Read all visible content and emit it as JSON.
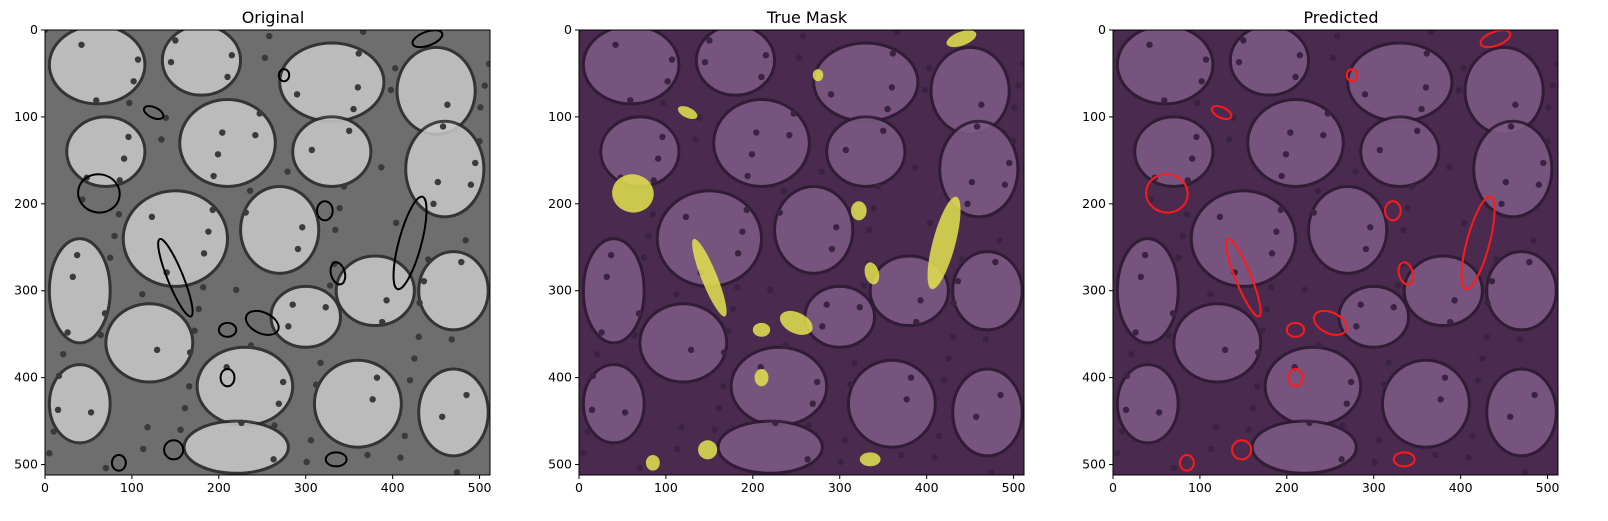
{
  "panels": [
    {
      "title": "Original",
      "style": "grayscale",
      "outline": "#000000"
    },
    {
      "title": "True Mask",
      "style": "mask",
      "fill": "#e3e34f"
    },
    {
      "title": "Predicted",
      "style": "overlay",
      "outline": "#ff1a1a"
    }
  ],
  "axis": {
    "x_ticks": [
      "0",
      "100",
      "200",
      "300",
      "400",
      "500"
    ],
    "y_ticks": [
      "0",
      "100",
      "200",
      "300",
      "400",
      "500"
    ],
    "range": [
      0,
      512
    ]
  },
  "regions": [
    {
      "cx": 125,
      "cy": 95,
      "rx": 12,
      "ry": 6,
      "rot": 25
    },
    {
      "cx": 275,
      "cy": 52,
      "rx": 6,
      "ry": 7,
      "rot": 0
    },
    {
      "cx": 440,
      "cy": 10,
      "rx": 18,
      "ry": 8,
      "rot": -20
    },
    {
      "cx": 62,
      "cy": 188,
      "rx": 24,
      "ry": 22,
      "rot": 10
    },
    {
      "cx": 322,
      "cy": 208,
      "rx": 9,
      "ry": 11,
      "rot": 0
    },
    {
      "cx": 420,
      "cy": 245,
      "rx": 13,
      "ry": 55,
      "rot": 15
    },
    {
      "cx": 150,
      "cy": 285,
      "rx": 9,
      "ry": 48,
      "rot": -22
    },
    {
      "cx": 337,
      "cy": 280,
      "rx": 8,
      "ry": 13,
      "rot": -15
    },
    {
      "cx": 210,
      "cy": 345,
      "rx": 10,
      "ry": 8,
      "rot": 0
    },
    {
      "cx": 250,
      "cy": 337,
      "rx": 20,
      "ry": 12,
      "rot": 25
    },
    {
      "cx": 210,
      "cy": 400,
      "rx": 8,
      "ry": 10,
      "rot": 0
    },
    {
      "cx": 148,
      "cy": 483,
      "rx": 11,
      "ry": 11,
      "rot": 0
    },
    {
      "cx": 85,
      "cy": 498,
      "rx": 8,
      "ry": 9,
      "rot": 0
    },
    {
      "cx": 335,
      "cy": 494,
      "rx": 12,
      "ry": 8,
      "rot": 0
    }
  ]
}
